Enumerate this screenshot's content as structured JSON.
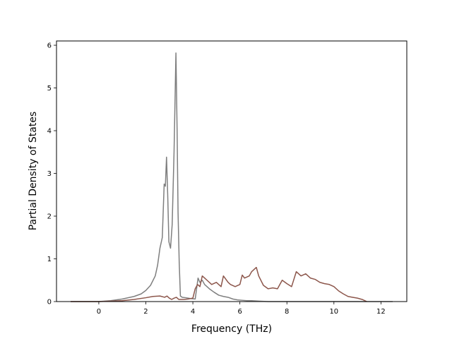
{
  "chart_data": {
    "type": "line",
    "title": "",
    "xlabel": "Frequency (THz)",
    "ylabel": "Partial Density of States",
    "xlim": [
      -1.8,
      13.1
    ],
    "ylim": [
      0,
      6.1
    ],
    "xticks": [
      0,
      2,
      4,
      6,
      8,
      10,
      12
    ],
    "yticks": [
      0,
      1,
      2,
      3,
      4,
      5,
      6
    ],
    "xtick_labels": [
      "0",
      "2",
      "4",
      "6",
      "8",
      "10",
      "12"
    ],
    "ytick_labels": [
      "0",
      "1",
      "2",
      "3",
      "4",
      "5",
      "6"
    ],
    "grid": false,
    "legend": "none",
    "series": [
      {
        "color": "#7f7f7f",
        "x": [
          -1.2,
          0.0,
          0.5,
          1.0,
          1.5,
          1.8,
          2.0,
          2.2,
          2.4,
          2.5,
          2.6,
          2.7,
          2.78,
          2.83,
          2.88,
          2.93,
          2.98,
          3.05,
          3.12,
          3.2,
          3.28,
          3.33,
          3.37,
          3.42,
          3.47,
          3.55,
          3.7,
          3.9,
          4.1,
          4.22,
          4.3,
          4.4,
          4.5,
          4.7,
          4.9,
          5.1,
          5.3,
          5.5,
          5.7,
          5.9,
          6.1,
          6.3,
          6.5,
          6.8,
          7.2,
          7.6,
          8.0,
          9.0,
          10.0,
          11.0,
          11.8,
          12.5
        ],
        "y": [
          0,
          0.0,
          0.02,
          0.06,
          0.12,
          0.18,
          0.26,
          0.38,
          0.6,
          0.85,
          1.25,
          1.5,
          2.75,
          2.7,
          3.38,
          2.5,
          1.4,
          1.25,
          1.8,
          3.5,
          5.82,
          4.0,
          2.1,
          0.9,
          0.13,
          0.1,
          0.09,
          0.07,
          0.06,
          0.55,
          0.45,
          0.5,
          0.4,
          0.3,
          0.22,
          0.15,
          0.12,
          0.1,
          0.06,
          0.04,
          0.03,
          0.02,
          0.02,
          0.01,
          0.0,
          0.0,
          0.0,
          0.0,
          0.0,
          0.0,
          0.0,
          0.0
        ]
      },
      {
        "color": "#8c564b",
        "x": [
          -1.2,
          0.0,
          1.0,
          1.5,
          2.0,
          2.3,
          2.6,
          2.8,
          2.9,
          3.0,
          3.1,
          3.2,
          3.3,
          3.4,
          3.6,
          3.8,
          4.0,
          4.1,
          4.2,
          4.3,
          4.4,
          4.5,
          4.6,
          4.8,
          5.0,
          5.2,
          5.3,
          5.5,
          5.6,
          5.8,
          6.0,
          6.1,
          6.2,
          6.4,
          6.5,
          6.7,
          6.8,
          7.0,
          7.2,
          7.4,
          7.6,
          7.8,
          8.0,
          8.2,
          8.4,
          8.6,
          8.8,
          9.0,
          9.2,
          9.4,
          9.6,
          9.8,
          10.0,
          10.2,
          10.4,
          10.6,
          10.8,
          11.0,
          11.2,
          11.4
        ],
        "y": [
          0,
          0.0,
          0.02,
          0.05,
          0.09,
          0.12,
          0.13,
          0.1,
          0.13,
          0.08,
          0.05,
          0.08,
          0.1,
          0.05,
          0.05,
          0.06,
          0.08,
          0.3,
          0.4,
          0.35,
          0.6,
          0.55,
          0.5,
          0.4,
          0.45,
          0.35,
          0.6,
          0.45,
          0.4,
          0.35,
          0.4,
          0.62,
          0.55,
          0.6,
          0.7,
          0.8,
          0.6,
          0.38,
          0.3,
          0.32,
          0.3,
          0.5,
          0.42,
          0.35,
          0.7,
          0.6,
          0.65,
          0.55,
          0.52,
          0.45,
          0.42,
          0.4,
          0.35,
          0.25,
          0.18,
          0.12,
          0.1,
          0.08,
          0.05,
          0.0
        ]
      }
    ]
  }
}
